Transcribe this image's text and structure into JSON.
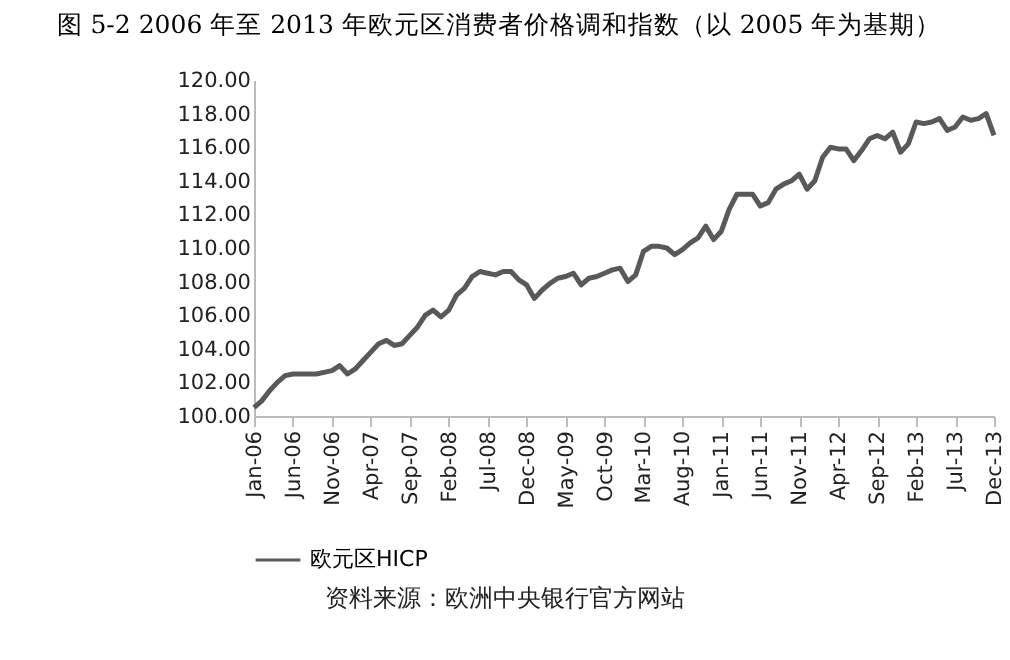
{
  "chart_data": {
    "type": "line",
    "title": "图 5-2 2006 年至 2013 年欧元区消费者价格调和指数（以 2005 年为基期）",
    "categories": [
      "Jan-06",
      null,
      null,
      null,
      null,
      "Jun-06",
      null,
      null,
      null,
      null,
      "Nov-06",
      null,
      null,
      null,
      null,
      "Apr-07",
      null,
      null,
      null,
      null,
      "Sep-07",
      null,
      null,
      null,
      null,
      "Feb-08",
      null,
      null,
      null,
      null,
      "Jul-08",
      null,
      null,
      null,
      null,
      "Dec-08",
      null,
      null,
      null,
      null,
      "May-09",
      null,
      null,
      null,
      null,
      "Oct-09",
      null,
      null,
      null,
      null,
      "Mar-10",
      null,
      null,
      null,
      null,
      "Aug-10",
      null,
      null,
      null,
      null,
      "Jan-11",
      null,
      null,
      null,
      null,
      "Jun-11",
      null,
      null,
      null,
      null,
      "Nov-11",
      null,
      null,
      null,
      null,
      "Apr-12",
      null,
      null,
      null,
      null,
      "Sep-12",
      null,
      null,
      null,
      null,
      "Feb-13",
      null,
      null,
      null,
      null,
      "Jul-13",
      null,
      null,
      null,
      null,
      "Dec-13"
    ],
    "series": [
      {
        "name": "欧元区HICP",
        "color": "#595959",
        "values": [
          100.5,
          100.9,
          101.5,
          102.0,
          102.4,
          102.5,
          102.5,
          102.5,
          102.5,
          102.6,
          102.7,
          103.0,
          102.5,
          102.8,
          103.3,
          103.8,
          104.3,
          104.5,
          104.2,
          104.3,
          104.8,
          105.3,
          106.0,
          106.3,
          105.9,
          106.3,
          107.2,
          107.6,
          108.3,
          108.6,
          108.5,
          108.4,
          108.6,
          108.6,
          108.1,
          107.8,
          107.0,
          107.5,
          107.9,
          108.2,
          108.3,
          108.5,
          107.8,
          108.2,
          108.3,
          108.5,
          108.7,
          108.8,
          108.0,
          108.4,
          109.8,
          110.1,
          110.1,
          110.0,
          109.6,
          109.9,
          110.3,
          110.6,
          111.3,
          110.5,
          111.0,
          112.3,
          113.2,
          113.2,
          113.2,
          112.5,
          112.7,
          113.5,
          113.8,
          114.0,
          114.4,
          113.5,
          114.0,
          115.4,
          116.0,
          115.9,
          115.9,
          115.2,
          115.8,
          116.5,
          116.7,
          116.5,
          116.9,
          115.7,
          116.2,
          117.5,
          117.4,
          117.5,
          117.7,
          117.0,
          117.2,
          117.8,
          117.6,
          117.7,
          118.0,
          116.7
        ]
      }
    ],
    "ylim": [
      100,
      120
    ],
    "yticks": [
      {
        "value": 100,
        "label": "100.00"
      },
      {
        "value": 102,
        "label": "102.00"
      },
      {
        "value": 104,
        "label": "104.00"
      },
      {
        "value": 106,
        "label": "106.00"
      },
      {
        "value": 108,
        "label": "108.00"
      },
      {
        "value": 110,
        "label": "110.00"
      },
      {
        "value": 112,
        "label": "112.00"
      },
      {
        "value": 114,
        "label": "114.00"
      },
      {
        "value": 116,
        "label": "116.00"
      },
      {
        "value": 118,
        "label": "118.00"
      },
      {
        "value": 120,
        "label": "120.00"
      }
    ],
    "legend": "bottom",
    "annotations": [
      "资料来源：欧洲中央银行官方网站"
    ]
  }
}
